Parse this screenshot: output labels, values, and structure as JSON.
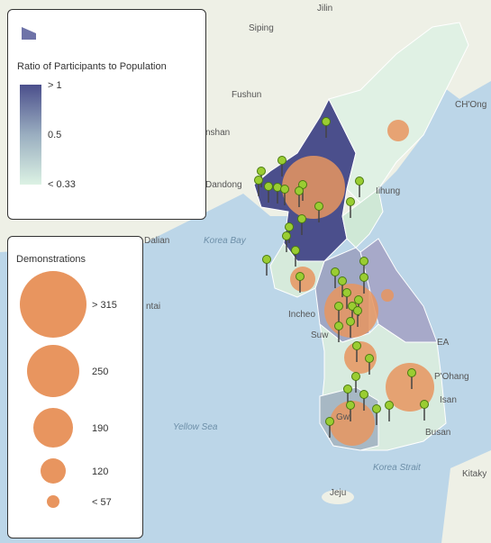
{
  "legend_ratio": {
    "title": "Ratio of Participants to Population",
    "labels": [
      "> 1",
      "0.5",
      "< 0.33"
    ]
  },
  "legend_demonstrations": {
    "title": "Demonstrations",
    "labels": [
      "> 315",
      "250",
      "190",
      "120",
      "< 57"
    ]
  },
  "place_labels": [
    "Jilin",
    "Siping",
    "Fushun",
    "nshan",
    "Dandong",
    "Dalian",
    "Korea Bay",
    "Iihung",
    "CH'Ong",
    "ntai",
    "Incheo",
    "Suw",
    "EA",
    "P'Ohang",
    "Isan",
    "Busan",
    "Yellow Sea",
    "Gw",
    "Korea Strait",
    "Kitaky",
    "Jeju"
  ]
}
